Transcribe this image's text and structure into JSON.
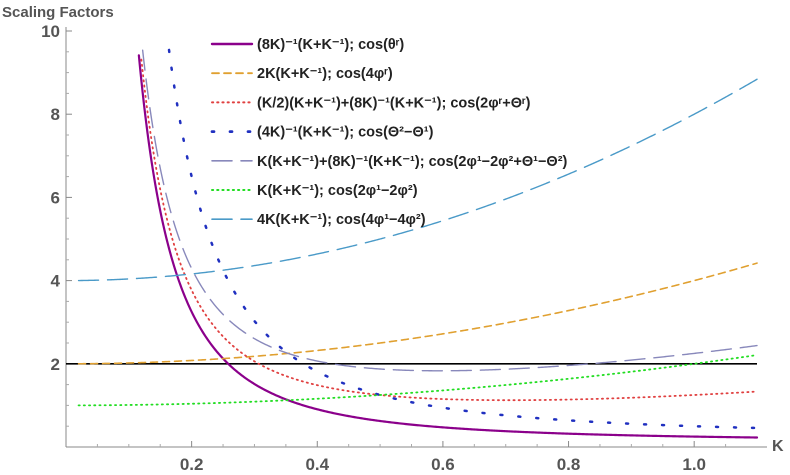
{
  "chart_data": {
    "type": "line",
    "title": "",
    "ylabel": "Scaling Factors",
    "xlabel": "K",
    "xlim": [
      0.0,
      1.1
    ],
    "ylim": [
      0,
      10
    ],
    "xticks": [
      "0.2",
      "0.4",
      "0.6",
      "0.8",
      "1.0"
    ],
    "yticks": [
      "2",
      "4",
      "6",
      "8",
      "10"
    ],
    "x_tick_values": [
      0.2,
      0.4,
      0.6,
      0.8,
      1.0
    ],
    "y_tick_values": [
      2,
      4,
      6,
      8,
      10
    ],
    "grid": false,
    "legend_position": "top-center",
    "reference_line": {
      "y": 2,
      "color": "#000000"
    },
    "series": [
      {
        "name": "(8K)^-1(K+K^-1); cos(θ^r)",
        "color": "#8B008B",
        "style": "solid",
        "coef": [
          0.125,
          0,
          0.125
        ],
        "note": "(8K)^-1(K+K^-1) = 1/8 + 1/(8K^2)"
      },
      {
        "name": "2K(K+K^-1); cos(4φ^r)",
        "color": "#E0A030",
        "style": "dashed",
        "coef": [
          2,
          2,
          0
        ]
      },
      {
        "name": "(K/2)(K+K^-1)+(8K)^-1(K+K^-1); cos(2φ^r+Θ^r)",
        "color": "#E04040",
        "style": "dotted",
        "coef": [
          0.625,
          0.5,
          0.125
        ]
      },
      {
        "name": "(4K)^-1(K+K^-1); cos(Θ^2-Θ^1)",
        "color": "#2030C0",
        "style": "sparse-dotted",
        "coef": [
          0.25,
          0,
          0.25
        ]
      },
      {
        "name": "K(K+K^-1)+(8K)^-1(K+K^-1); cos(2φ^1-2φ^2+Θ^1-Θ^2)",
        "color": "#8888BB",
        "style": "long-dashed",
        "coef": [
          1.125,
          1,
          0.125
        ]
      },
      {
        "name": "K(K+K^-1); cos(2φ^1-2φ^2)",
        "color": "#22DD22",
        "style": "dotted",
        "coef": [
          1,
          1,
          0
        ]
      },
      {
        "name": "4K(K+K^-1); cos(4φ^1-4φ^2)",
        "color": "#4A9AC8",
        "style": "long-dashed",
        "coef": [
          4,
          4,
          0
        ]
      }
    ]
  },
  "legend": [
    {
      "expr": "(8K)",
      "sup1": "-1",
      "mid": "(K+K",
      "sup2": "-1",
      "end": ");  cos(θ",
      "sup3": "r",
      "close": ")"
    },
    {
      "expr": "2K(K+K",
      "sup1": "-1",
      "mid": ");  cos(4φ",
      "sup2": "r",
      "end": ")",
      "sup3": "",
      "close": ""
    },
    {
      "expr": "(K/2)(K+K",
      "sup1": "-1",
      "mid": ")+(8K)",
      "sup2": "-1",
      "end": "(K+K",
      "sup3": "-1",
      "close": ");  cos(2φ^r+Θ^r)"
    },
    {
      "expr": "(4K)",
      "sup1": "-1",
      "mid": "(K+K",
      "sup2": "-1",
      "end": ");  cos(Θ",
      "sup3": "2",
      "close": "−Θ¹)"
    },
    {
      "expr": "K(K+K",
      "sup1": "-1",
      "mid": ")+(8K)",
      "sup2": "-1",
      "end": "(K+K",
      "sup3": "-1",
      "close": ");  cos(2φ¹−2φ²+Θ¹−Θ²)"
    },
    {
      "expr": "K(K+K",
      "sup1": "-1",
      "mid": ");  cos(2φ¹−2φ²)",
      "sup2": "",
      "end": "",
      "sup3": "",
      "close": ""
    },
    {
      "expr": "4K(K+K",
      "sup1": "-1",
      "mid": ");  cos(4φ¹−4φ²)",
      "sup2": "",
      "end": "",
      "sup3": "",
      "close": ""
    }
  ]
}
